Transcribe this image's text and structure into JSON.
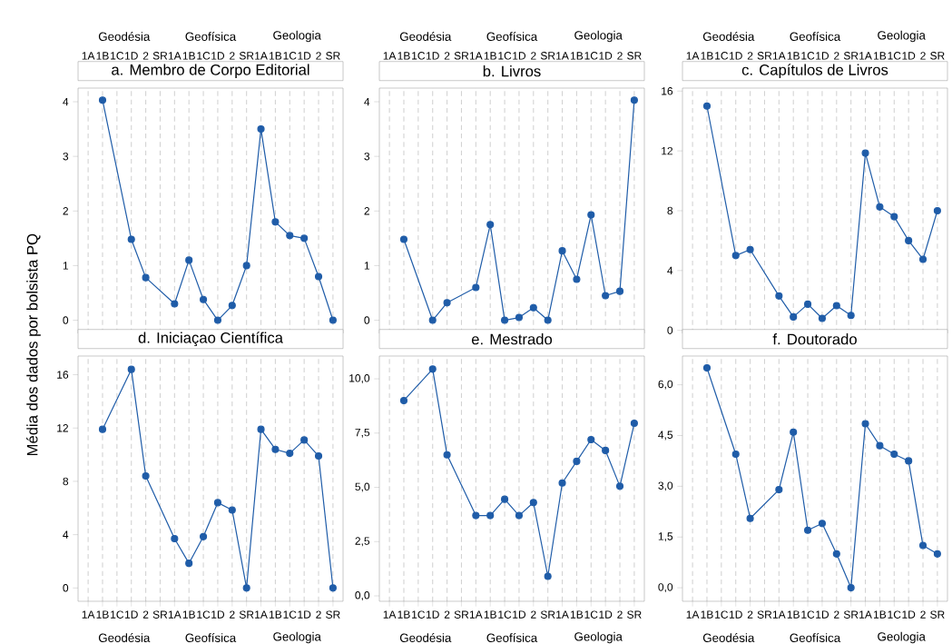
{
  "chart_data": [
    {
      "type": "line",
      "title": "a. Membro de Corpo Editorial",
      "ylabel": "Média dos dados por bolsista PQ",
      "categories": [
        "1A",
        "1B",
        "1C",
        "1D",
        "2",
        "SR",
        "1A",
        "1B",
        "1C",
        "1D",
        "2",
        "SR",
        "1A",
        "1B",
        "1C",
        "1D",
        "2",
        "SR"
      ],
      "values": [
        null,
        4.03,
        null,
        1.48,
        0.78,
        null,
        0.3,
        1.1,
        0.38,
        0,
        0.27,
        1.0,
        3.5,
        1.8,
        1.55,
        1.5,
        0.8,
        0
      ],
      "color": "#1f5ca8",
      "ylim": [
        -0.24,
        4.25
      ],
      "yticks": [
        0,
        1,
        2,
        3,
        4
      ],
      "grid": "x",
      "marker": "circle",
      "annotations": [
        "Geodésia",
        "Geofísica",
        "Geologia"
      ]
    },
    {
      "type": "line",
      "title": "b. Livros",
      "categories": [
        "1A",
        "1B",
        "1C",
        "1D",
        "2",
        "SR",
        "1A",
        "1B",
        "1C",
        "1D",
        "2",
        "SR",
        "1A",
        "1B",
        "1C",
        "1D",
        "2",
        "SR"
      ],
      "values": [
        null,
        1.48,
        null,
        0,
        0.32,
        null,
        0.6,
        1.75,
        0,
        0.05,
        0.23,
        0,
        1.27,
        0.75,
        1.93,
        0.45,
        0.53,
        4.03
      ],
      "color": "#1f5ca8",
      "ylim": [
        -0.24,
        4.25
      ],
      "yticks": [
        0,
        1,
        2,
        3,
        4
      ],
      "grid": "x",
      "marker": "circle",
      "annotations": [
        "Geodésia",
        "Geofísica",
        "Geologia"
      ]
    },
    {
      "type": "line",
      "title": "c. Capítulos de Livros",
      "categories": [
        "1A",
        "1B",
        "1C",
        "1D",
        "2",
        "SR",
        "1A",
        "1B",
        "1C",
        "1D",
        "2",
        "SR",
        "1A",
        "1B",
        "1C",
        "1D",
        "2",
        "SR"
      ],
      "values": [
        null,
        15,
        null,
        5,
        5.4,
        null,
        2.3,
        0.9,
        1.75,
        0.8,
        1.65,
        1.0,
        11.85,
        8.25,
        7.6,
        6.0,
        4.75,
        8.0
      ],
      "color": "#1f5ca8",
      "ylim": [
        -0.2,
        16.2
      ],
      "yticks": [
        0,
        4,
        8,
        12,
        16
      ],
      "grid": "x",
      "marker": "circle",
      "annotations": [
        "Geodésia",
        "Geofísica",
        "Geologia"
      ]
    },
    {
      "type": "line",
      "title": "d. Iniciaçao Científica",
      "categories": [
        "1A",
        "1B",
        "1C",
        "1D",
        "2",
        "SR",
        "1A",
        "1B",
        "1C",
        "1D",
        "2",
        "SR",
        "1A",
        "1B",
        "1C",
        "1D",
        "2",
        "SR"
      ],
      "values": [
        null,
        11.9,
        null,
        16.4,
        8.4,
        null,
        3.7,
        1.85,
        3.85,
        6.4,
        5.85,
        0,
        11.9,
        10.4,
        10.1,
        11.1,
        9.9,
        0
      ],
      "color": "#1f5ca8",
      "ylim": [
        -1,
        17.4
      ],
      "yticks": [
        0,
        4,
        8,
        12,
        16
      ],
      "grid": "x",
      "marker": "circle",
      "annotations": [
        "Geodésia",
        "Geofísica",
        "Geologia"
      ]
    },
    {
      "type": "line",
      "title": "e. Mestrado",
      "categories": [
        "1A",
        "1B",
        "1C",
        "1D",
        "2",
        "SR",
        "1A",
        "1B",
        "1C",
        "1D",
        "2",
        "SR",
        "1A",
        "1B",
        "1C",
        "1D",
        "2",
        "SR"
      ],
      "values": [
        null,
        9.0,
        null,
        10.45,
        6.5,
        null,
        3.7,
        3.7,
        4.45,
        3.7,
        4.3,
        0.9,
        5.2,
        6.2,
        7.2,
        6.7,
        5.05,
        7.95
      ],
      "color": "#1f5ca8",
      "ylim": [
        -0.25,
        11.05
      ],
      "yticks": [
        {
          "value": 0,
          "label": "0,0"
        },
        {
          "value": 2.5,
          "label": "2,5"
        },
        {
          "value": 5,
          "label": "5,0"
        },
        {
          "value": 7.5,
          "label": "7,5"
        },
        {
          "value": 10,
          "label": "10,0"
        }
      ],
      "grid": "x",
      "marker": "circle",
      "annotations": [
        "Geodésia",
        "Geofísica",
        "Geologia"
      ]
    },
    {
      "type": "line",
      "title": "f. Doutorado",
      "categories": [
        "1A",
        "1B",
        "1C",
        "1D",
        "2",
        "SR",
        "1A",
        "1B",
        "1C",
        "1D",
        "2",
        "SR",
        "1A",
        "1B",
        "1C",
        "1D",
        "2",
        "SR"
      ],
      "values": [
        null,
        6.5,
        null,
        3.95,
        2.05,
        null,
        2.9,
        4.6,
        1.7,
        1.9,
        1.0,
        0,
        4.85,
        4.2,
        3.95,
        3.75,
        1.25,
        1.0
      ],
      "color": "#1f5ca8",
      "ylim": [
        -0.4,
        6.85
      ],
      "yticks": [
        {
          "value": 0,
          "label": "0,0"
        },
        {
          "value": 1.5,
          "label": "1,5"
        },
        {
          "value": 3,
          "label": "3,0"
        },
        {
          "value": 4.5,
          "label": "4,5"
        },
        {
          "value": 6,
          "label": "6,0"
        }
      ],
      "grid": "x",
      "marker": "circle",
      "annotations": [
        "Geodésia",
        "Geofísica",
        "Geologia"
      ]
    }
  ]
}
